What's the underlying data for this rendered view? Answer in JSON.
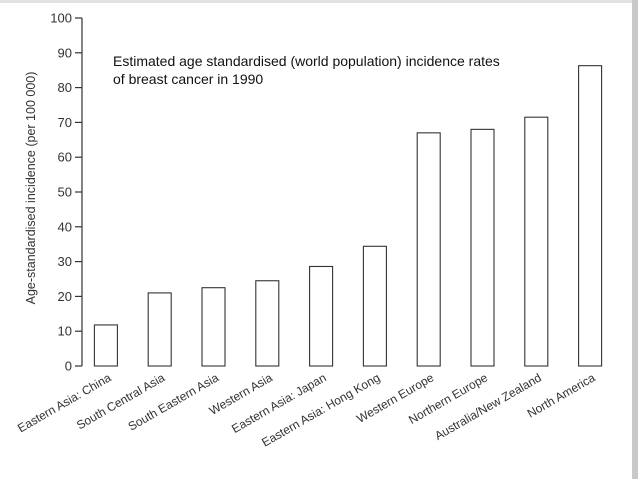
{
  "chart_data": {
    "type": "bar",
    "title": "Estimated age standardised (world population) incidence rates of breast cancer in 1990",
    "title_lines": [
      "Estimated age standardised (world population) incidence rates",
      "of breast cancer in 1990"
    ],
    "xlabel": "",
    "ylabel": "Age-standardised incidence (per 100 000)",
    "ylim": [
      0,
      100
    ],
    "yticks": [
      "0",
      "10",
      "20",
      "30",
      "40",
      "50",
      "60",
      "70",
      "80",
      "90",
      "100"
    ],
    "categories": [
      "Eastern Asia: China",
      "South Central Asia",
      "South Eastern Asia",
      "Western Asia",
      "Eastern Asia: Japan",
      "Eastern Asia: Hong Kong",
      "Western Europe",
      "Northern Europe",
      "Australia/New Zealand",
      "North America"
    ],
    "values": [
      11.8,
      21.0,
      22.5,
      24.5,
      28.6,
      34.4,
      67.0,
      68.0,
      71.5,
      86.3
    ],
    "grid": false,
    "bar_fill": "#ffffff",
    "bar_stroke": "#333333"
  }
}
